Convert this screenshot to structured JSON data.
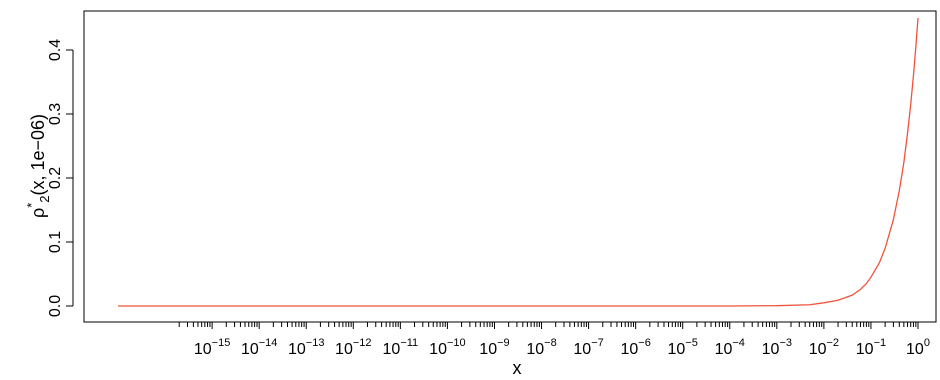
{
  "chart_data": {
    "type": "line",
    "title": "",
    "xlabel": "x",
    "ylabel": {
      "base": "ρ",
      "superscript": "*",
      "subscript": "2",
      "args": "(x, 1e−06)"
    },
    "x_scale": "log10",
    "xlim": [
      1e-17,
      1
    ],
    "ylim": [
      0,
      0.45
    ],
    "y_ticks": [
      0.0,
      0.1,
      0.2,
      0.3,
      0.4
    ],
    "y_tick_labels": [
      "0.0",
      "0.1",
      "0.2",
      "0.3",
      "0.4"
    ],
    "x_major_ticks": [
      {
        "exp": "−15",
        "value": 1e-15
      },
      {
        "exp": "−14",
        "value": 1e-14
      },
      {
        "exp": "−13",
        "value": 1e-13
      },
      {
        "exp": "−12",
        "value": 1e-12
      },
      {
        "exp": "−11",
        "value": 1e-11
      },
      {
        "exp": "−10",
        "value": 1e-10
      },
      {
        "exp": "−9",
        "value": 1e-09
      },
      {
        "exp": "−8",
        "value": 1e-08
      },
      {
        "exp": "−7",
        "value": 1e-07
      },
      {
        "exp": "−6",
        "value": 1e-06
      },
      {
        "exp": "−5",
        "value": 1e-05
      },
      {
        "exp": "−4",
        "value": 0.0001
      },
      {
        "exp": "−3",
        "value": 0.001
      },
      {
        "exp": "−2",
        "value": 0.01
      },
      {
        "exp": "−1",
        "value": 0.1
      },
      {
        "exp": "0",
        "value": 1
      }
    ],
    "x_tick_base": "10",
    "minor_ticks": true,
    "grid": false,
    "legend": "none",
    "series": [
      {
        "color": "#f0533a",
        "x": [
          1e-17,
          1e-10,
          1e-05,
          0.0001,
          0.001,
          0.005,
          0.01,
          0.02,
          0.04,
          0.06,
          0.08,
          0.1,
          0.15,
          0.2,
          0.3,
          0.4,
          0.5,
          0.6,
          0.7,
          0.8,
          0.9,
          1.0
        ],
        "y": [
          0.0,
          0.0,
          0.0,
          0.0,
          0.0005,
          0.002,
          0.005,
          0.009,
          0.017,
          0.026,
          0.035,
          0.045,
          0.067,
          0.09,
          0.135,
          0.18,
          0.224,
          0.27,
          0.315,
          0.36,
          0.405,
          0.45
        ]
      }
    ]
  }
}
